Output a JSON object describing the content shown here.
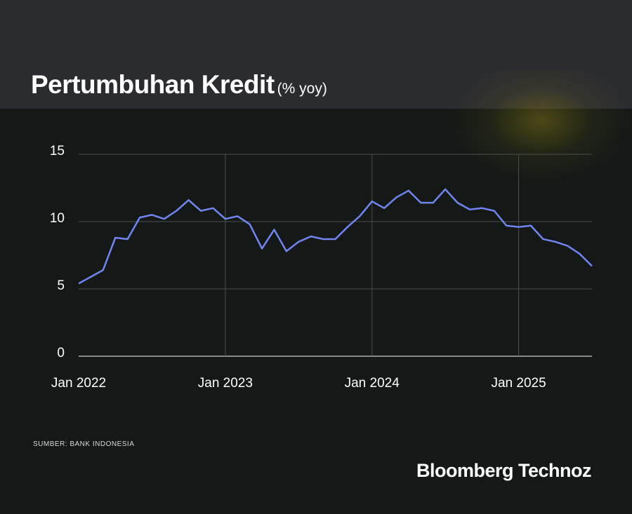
{
  "chart_data": {
    "type": "line",
    "title": "Pertumbuhan Kredit",
    "subtitle": "(% yoy)",
    "source": "SUMBER: BANK INDONESIA",
    "brand": "Bloomberg Technoz",
    "x": [
      "2022-01",
      "2022-02",
      "2022-03",
      "2022-04",
      "2022-05",
      "2022-06",
      "2022-07",
      "2022-08",
      "2022-09",
      "2022-10",
      "2022-11",
      "2022-12",
      "2023-01",
      "2023-02",
      "2023-03",
      "2023-04",
      "2023-05",
      "2023-06",
      "2023-07",
      "2023-08",
      "2023-09",
      "2023-10",
      "2023-11",
      "2023-12",
      "2024-01",
      "2024-02",
      "2024-03",
      "2024-04",
      "2024-05",
      "2024-06",
      "2024-07",
      "2024-08",
      "2024-09",
      "2024-10",
      "2024-11",
      "2024-12",
      "2025-01",
      "2025-02",
      "2025-03",
      "2025-04",
      "2025-05",
      "2025-06",
      "2025-07"
    ],
    "series": [
      {
        "name": "Pertumbuhan Kredit",
        "color": "#6f86f0",
        "values": [
          5.4,
          5.9,
          6.4,
          8.8,
          8.7,
          10.3,
          10.5,
          10.2,
          10.8,
          11.6,
          10.8,
          11.0,
          10.2,
          10.4,
          9.8,
          8.0,
          9.4,
          7.8,
          8.5,
          8.9,
          8.7,
          8.7,
          9.6,
          10.4,
          11.5,
          11.0,
          11.8,
          12.3,
          11.4,
          11.4,
          12.4,
          11.4,
          10.9,
          11.0,
          10.8,
          9.7,
          9.6,
          9.7,
          8.7,
          8.5,
          8.2,
          7.6,
          6.7
        ]
      }
    ],
    "xticks": [
      {
        "value": "2022-01",
        "label": "Jan 2022"
      },
      {
        "value": "2023-01",
        "label": "Jan 2023"
      },
      {
        "value": "2024-01",
        "label": "Jan 2024"
      },
      {
        "value": "2025-01",
        "label": "Jan 2025"
      }
    ],
    "ylim": [
      0,
      15
    ],
    "yticks": [
      0,
      5,
      10,
      15
    ],
    "grid": true
  }
}
